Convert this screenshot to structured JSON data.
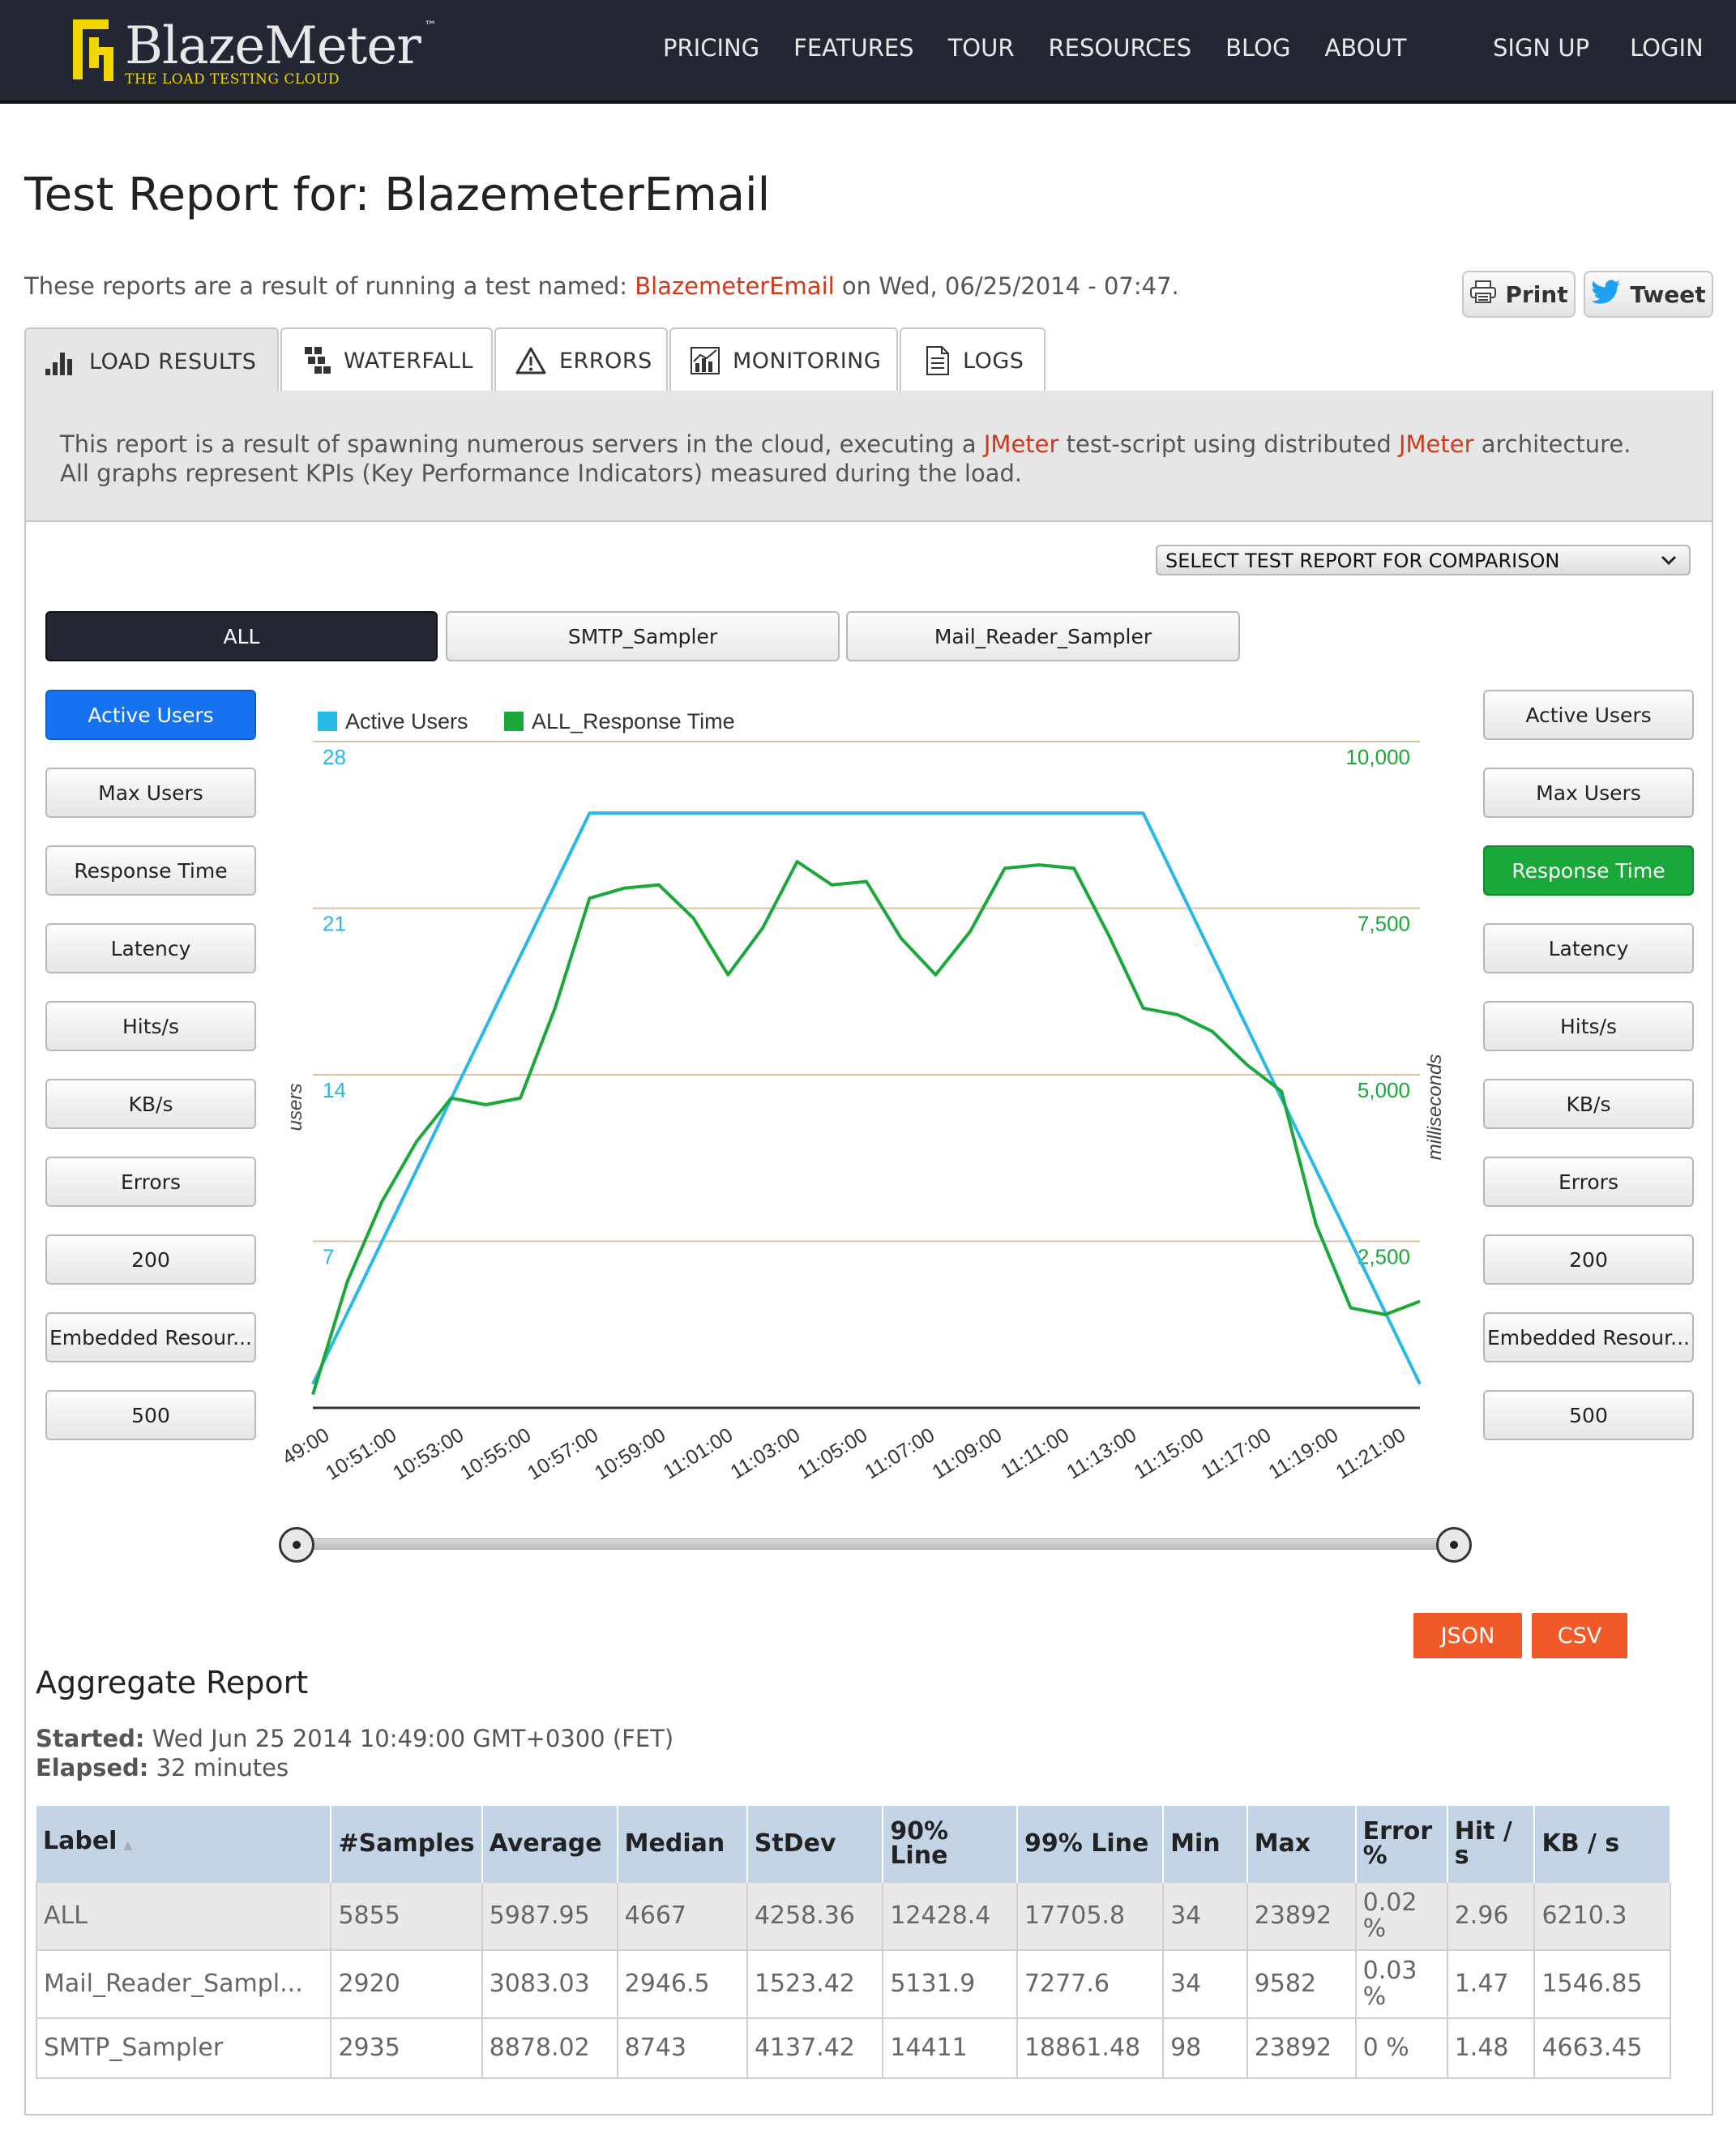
{
  "header": {
    "brand": "BlazeMeter",
    "tm": "™",
    "tagline": "THE LOAD TESTING CLOUD",
    "nav": [
      "PRICING",
      "FEATURES",
      "TOUR",
      "RESOURCES",
      "BLOG",
      "ABOUT"
    ],
    "auth": [
      "SIGN UP",
      "LOGIN"
    ]
  },
  "page": {
    "title": "Test Report for: BlazemeterEmail",
    "intro_pre": "These reports are a result of running a test named: ",
    "intro_link": "BlazemeterEmail",
    "intro_post": " on Wed, 06/25/2014 - 07:47.",
    "print_label": "Print",
    "tweet_label": "Tweet"
  },
  "tabs": [
    {
      "label": "LOAD RESULTS",
      "icon": "bar-chart-icon",
      "active": true
    },
    {
      "label": "WATERFALL",
      "icon": "waterfall-icon"
    },
    {
      "label": "ERRORS",
      "icon": "warning-icon"
    },
    {
      "label": "MONITORING",
      "icon": "monitoring-icon"
    },
    {
      "label": "LOGS",
      "icon": "document-icon"
    }
  ],
  "banner": {
    "l1_a": "This report is a result of spawning numerous servers in the cloud, executing a ",
    "l1_b": "JMeter",
    "l1_c": " test-script using distributed ",
    "l1_d": "JMeter",
    "l1_e": " architecture.",
    "l2": "All graphs represent KPIs (Key Performance Indicators) measured during the load."
  },
  "compare_select": "SELECT TEST REPORT FOR COMPARISON",
  "samplers": [
    "ALL",
    "SMTP_Sampler",
    "Mail_Reader_Sampler"
  ],
  "kpi_left": [
    "Active Users",
    "Max Users",
    "Response Time",
    "Latency",
    "Hits/s",
    "KB/s",
    "Errors",
    "200",
    "Embedded Resour...",
    "500"
  ],
  "kpi_right": [
    "Active Users",
    "Max Users",
    "Response Time",
    "Latency",
    "Hits/s",
    "KB/s",
    "Errors",
    "200",
    "Embedded Resour...",
    "500"
  ],
  "colors": {
    "users": "#29b9e8",
    "response": "#1aa83a",
    "grid": "#d9c4a0",
    "accent_red": "#d2391a",
    "button_orange": "#f05a28"
  },
  "chart_data": {
    "type": "line",
    "legend": [
      "Active Users",
      "ALL_Response Time"
    ],
    "ylabel_left": "users",
    "ylabel_right": "milliseconds",
    "yticks_left": [
      "28",
      "21",
      "14",
      "7"
    ],
    "yticks_right": [
      "10,000",
      "7,500",
      "5,000",
      "2,500"
    ],
    "ylim_left": [
      0,
      28
    ],
    "ylim_right": [
      0,
      10000
    ],
    "xticks": [
      "49:00",
      "10:51:00",
      "10:53:00",
      "10:55:00",
      "10:57:00",
      "10:59:00",
      "11:01:00",
      "11:03:00",
      "11:05:00",
      "11:07:00",
      "11:09:00",
      "11:11:00",
      "11:13:00",
      "11:15:00",
      "11:17:00",
      "11:19:00",
      "11:21:00"
    ],
    "x_start_min": 0,
    "x_end_min": 32,
    "series": [
      {
        "name": "Active Users",
        "axis": "left",
        "x": [
          0,
          8,
          24,
          32
        ],
        "y": [
          1,
          25,
          25,
          1
        ]
      },
      {
        "name": "ALL_Response Time",
        "axis": "right",
        "x": [
          0,
          1,
          2,
          3,
          4,
          5,
          6,
          7,
          8,
          9,
          10,
          11,
          12,
          13,
          14,
          15,
          16,
          17,
          18,
          19,
          20,
          21,
          22,
          23,
          24,
          25,
          26,
          27,
          28,
          29,
          30,
          31,
          32
        ],
        "y": [
          200,
          1900,
          3100,
          4000,
          4650,
          4550,
          4650,
          6000,
          7650,
          7800,
          7850,
          7350,
          6500,
          7200,
          8200,
          7850,
          7900,
          7050,
          6500,
          7150,
          8100,
          8150,
          8100,
          7100,
          6000,
          5900,
          5650,
          5150,
          4750,
          2750,
          1500,
          1400,
          1600
        ]
      }
    ]
  },
  "downloads": [
    "JSON",
    "CSV"
  ],
  "aggregate": {
    "title": "Aggregate Report",
    "started_label": "Started:",
    "started_value": " Wed Jun 25 2014 10:49:00 GMT+0300 (FET)",
    "elapsed_label": "Elapsed:",
    "elapsed_value": " 32 minutes",
    "columns": [
      "Label",
      "#Samples",
      "Average",
      "Median",
      "StDev",
      "90% Line",
      "99% Line",
      "Min",
      "Max",
      "Error %",
      "Hit / s",
      "KB / s"
    ],
    "rows": [
      [
        "ALL",
        "5855",
        "5987.95",
        "4667",
        "4258.36",
        "12428.4",
        "17705.8",
        "34",
        "23892",
        "0.02 %",
        "2.96",
        "6210.3"
      ],
      [
        "Mail_Reader_Sampl...",
        "2920",
        "3083.03",
        "2946.5",
        "1523.42",
        "5131.9",
        "7277.6",
        "34",
        "9582",
        "0.03 %",
        "1.47",
        "1546.85"
      ],
      [
        "SMTP_Sampler",
        "2935",
        "8878.02",
        "8743",
        "4137.42",
        "14411",
        "18861.48",
        "98",
        "23892",
        "0 %",
        "1.48",
        "4663.45"
      ]
    ]
  }
}
